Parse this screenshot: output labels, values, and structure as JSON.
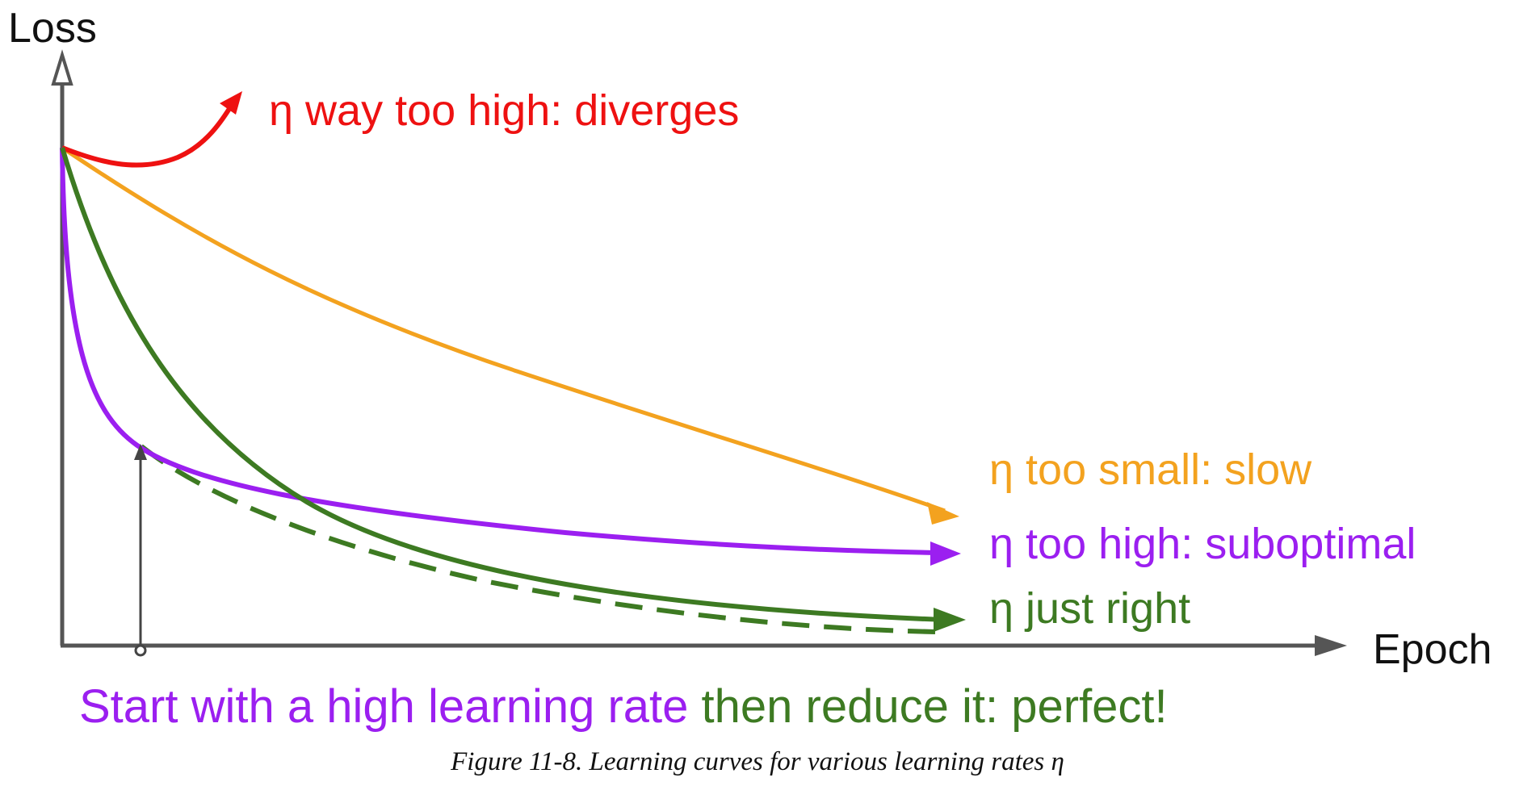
{
  "axes": {
    "y_label": "Loss",
    "x_label": "Epoch"
  },
  "curves": [
    {
      "id": "diverges",
      "label": "η way too high: diverges",
      "color": "#ee1111"
    },
    {
      "id": "slow",
      "label": "η too small: slow",
      "color": "#f3a21f"
    },
    {
      "id": "suboptimal",
      "label": "η too high: suboptimal",
      "color": "#9b1ff0"
    },
    {
      "id": "just_right",
      "label": "η just right",
      "color": "#3d7a22"
    }
  ],
  "annotation": {
    "part1": "Start with a high learning rate",
    "part1_color": "#9b1ff0",
    "part2": " then reduce it: perfect!",
    "part2_color": "#3d7a22"
  },
  "caption": "Figure 11-8. Learning curves for various learning rates η",
  "colors": {
    "axis": "#555555",
    "text": "#111111"
  }
}
